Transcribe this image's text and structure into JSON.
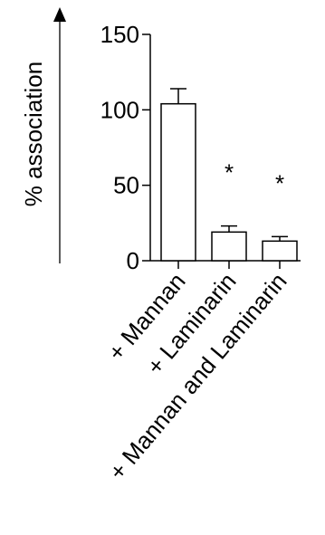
{
  "chart_data": {
    "type": "bar",
    "title": "",
    "xlabel": "",
    "ylabel": "% association",
    "ylim": [
      0,
      150
    ],
    "yticks": [
      0,
      50,
      100,
      150
    ],
    "categories": [
      "+ Mannan",
      "+ Laminarin",
      "+ Mannan and Laminarin"
    ],
    "values": [
      104,
      19,
      13
    ],
    "error": [
      10,
      4,
      3
    ],
    "annotations": [
      "",
      "*",
      "*"
    ],
    "grid": false,
    "legend": "none",
    "bar_fill": "#ffffff",
    "line_color": "#000000"
  }
}
